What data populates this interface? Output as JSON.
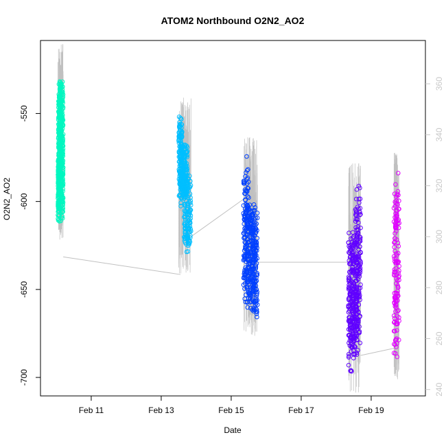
{
  "chart_data": {
    "type": "scatter",
    "title": "ATOM2 Northbound O2N2_AO2",
    "xlabel": "Date",
    "ylabel": "O2N2_AO2",
    "x_tick_labels": [
      "Feb 11",
      "Feb 13",
      "Feb 15",
      "Feb 17",
      "Feb 19"
    ],
    "x_tick_values": [
      11,
      13,
      15,
      17,
      19
    ],
    "xlim": [
      9.55,
      20.55
    ],
    "y_left": {
      "ylim": [
        -710.5,
        -508.5
      ],
      "ticks": [
        -700,
        -650,
        -600,
        -550
      ],
      "tick_labels": [
        "-700",
        "-650",
        "-600",
        "-550"
      ]
    },
    "y_right": {
      "ylim": [
        237.5,
        377
      ],
      "ticks": [
        240,
        260,
        280,
        300,
        320,
        340,
        360
      ],
      "tick_labels": [
        "240",
        "260",
        "280",
        "300",
        "320",
        "340",
        "360"
      ],
      "color": "#c8c8c8"
    },
    "line_color": "#c0c0c0",
    "series": [
      {
        "color": "#00f7c0",
        "x_start": 10.05,
        "x_end": 10.2,
        "y_min": -614,
        "y_max": -518,
        "segments": [
          [
            10.05,
            10.09,
            -612,
            -572
          ],
          [
            10.06,
            10.13,
            -600,
            -530
          ],
          [
            10.08,
            10.2,
            -570,
            -528
          ],
          [
            10.12,
            10.2,
            -612,
            -560
          ]
        ]
      },
      {
        "color": "#00bfff",
        "x_start": 13.5,
        "x_end": 13.85,
        "y_min": -633,
        "y_max": -549,
        "segments": [
          [
            13.5,
            13.6,
            -604,
            -550
          ],
          [
            13.55,
            13.75,
            -600,
            -565
          ],
          [
            13.65,
            13.85,
            -632,
            -580
          ]
        ]
      },
      {
        "color": "#0040ff",
        "x_start": 15.35,
        "x_end": 15.75,
        "y_min": -669,
        "y_max": -570,
        "segments": [
          [
            15.35,
            15.5,
            -660,
            -572
          ],
          [
            15.45,
            15.65,
            -665,
            -595
          ],
          [
            15.6,
            15.75,
            -668,
            -600
          ]
        ]
      },
      {
        "color": "#6000ff",
        "x_start": 18.35,
        "x_end": 18.7,
        "y_min": -702,
        "y_max": -586,
        "segments": [
          [
            18.35,
            18.5,
            -700,
            -612
          ],
          [
            18.45,
            18.6,
            -690,
            -618
          ],
          [
            18.55,
            18.7,
            -688,
            -586
          ]
        ]
      },
      {
        "color": "#e000ff",
        "x_start": 19.65,
        "x_end": 19.8,
        "y_min": -693,
        "y_max": -580,
        "segments": [
          [
            19.65,
            19.8,
            -693,
            -580
          ]
        ]
      }
    ],
    "connector_lines": [
      [
        [
          10.2,
          -631.5
        ],
        [
          13.55,
          -641.5
        ]
      ],
      [
        [
          13.85,
          -620
        ],
        [
          15.4,
          -598
        ]
      ],
      [
        [
          15.75,
          -634.5
        ],
        [
          18.35,
          -634.5
        ]
      ],
      [
        [
          18.7,
          -687.5
        ],
        [
          19.75,
          -683
        ]
      ]
    ],
    "grid": false,
    "legend": "none"
  }
}
